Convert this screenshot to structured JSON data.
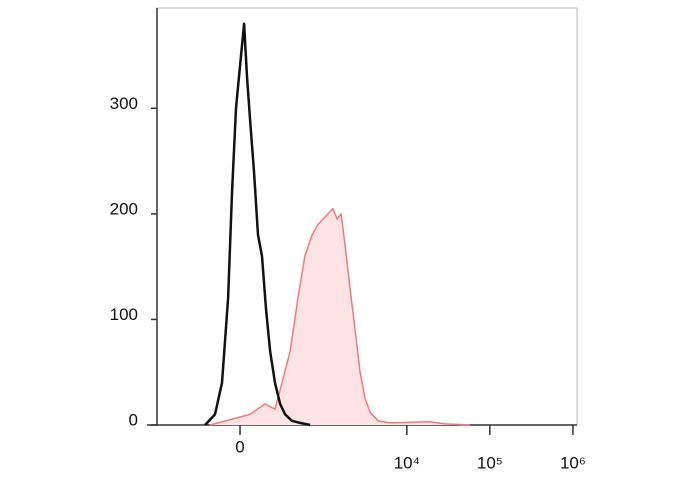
{
  "chart_data": {
    "type": "line",
    "xscale": "biexponential",
    "xlim": [
      -970,
      1120000
    ],
    "ylim": [
      0,
      395
    ],
    "xticks": [
      0,
      {
        "value": 10000,
        "label": "10⁴"
      },
      {
        "value": 100000,
        "label": "10⁵"
      },
      {
        "value": 1000000,
        "label": "10⁶"
      }
    ],
    "yticks": [
      0,
      100,
      200,
      300
    ],
    "grid": false,
    "series": [
      {
        "color": "#f07a7a",
        "fill": "#fde3e3",
        "x": [
          -183,
          -55,
          55,
          147,
          221,
          283,
          369,
          468,
          576,
          709,
          841,
          970,
          1117,
          1285,
          1438,
          1609,
          1799,
          2066,
          2377,
          2732,
          3141,
          3608,
          4504,
          6284,
          19050,
          28900,
          57800
        ],
        "values": [
          0,
          5,
          10,
          20,
          15,
          40,
          70,
          120,
          160,
          180,
          190,
          195,
          200,
          205,
          195,
          200,
          170,
          130,
          90,
          50,
          25,
          12,
          4,
          2,
          3,
          1,
          0
        ]
      },
      {
        "color": "#111111",
        "x": [
          -221,
          -147,
          -102,
          -66,
          -44,
          -22,
          0,
          22,
          38,
          55,
          78,
          102,
          127,
          154,
          183,
          221,
          265,
          314,
          390,
          500,
          670
        ],
        "values": [
          0,
          10,
          40,
          120,
          220,
          300,
          340,
          380,
          330,
          290,
          240,
          180,
          160,
          110,
          70,
          40,
          20,
          10,
          4,
          2,
          0
        ]
      }
    ]
  }
}
